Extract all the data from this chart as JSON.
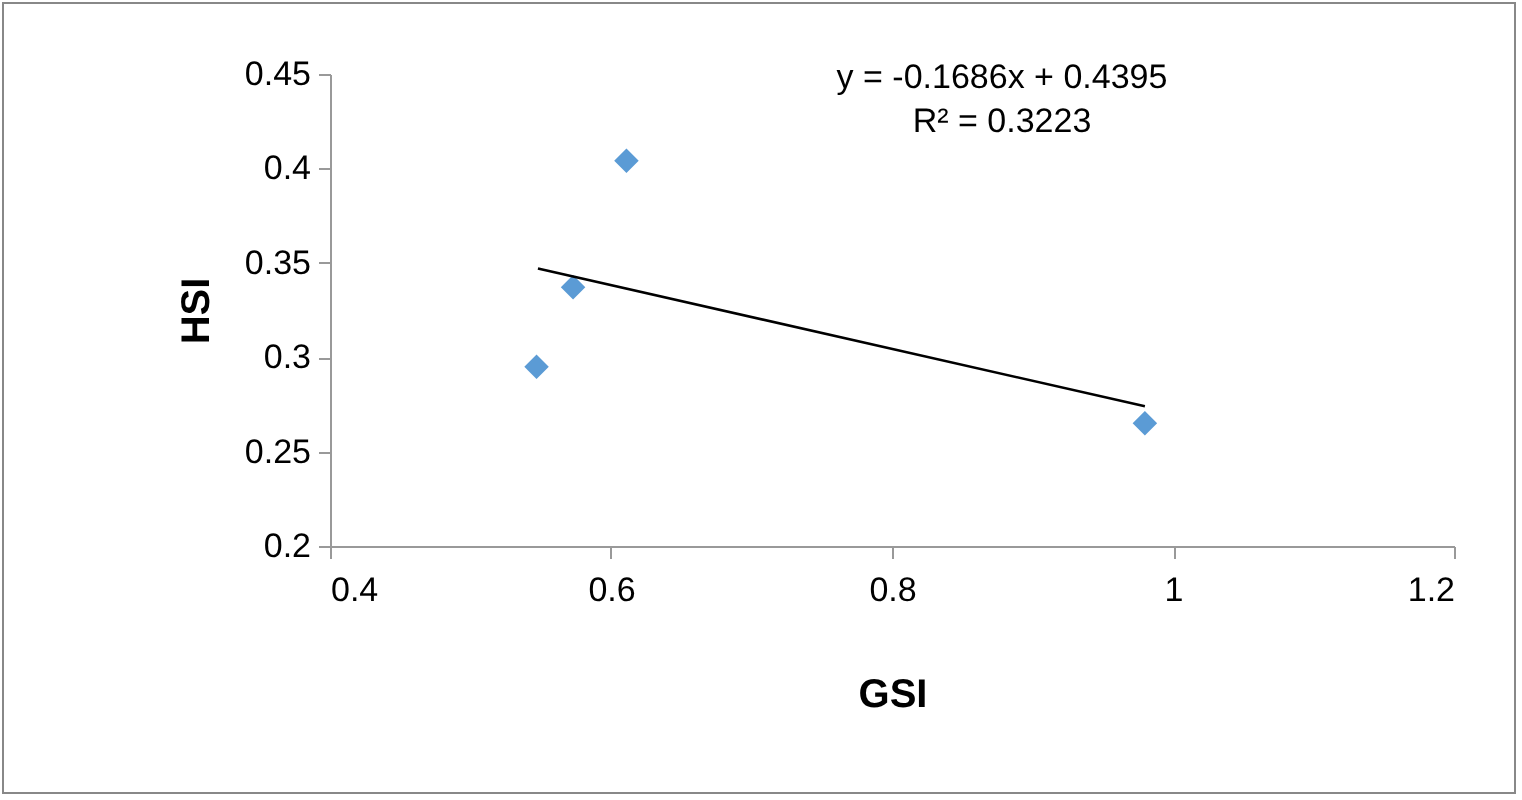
{
  "chart_data": {
    "type": "scatter",
    "xlabel": "GSI",
    "ylabel": "HSI",
    "annotations": [
      "y = -0.1686x + 0.4395",
      "R² = 0.3223"
    ],
    "xlim": [
      0.4,
      1.2
    ],
    "xticks": [
      0.4,
      0.6,
      0.8,
      1,
      1.2
    ],
    "ylim": [
      0.2,
      0.45
    ],
    "yticks": [
      0.2,
      0.25,
      0.3,
      0.35,
      0.4,
      0.45
    ],
    "marker": "diamond",
    "series": [
      {
        "color": "#5b9bd5",
        "x": [
          0.547,
          0.573,
          0.611,
          0.98
        ],
        "values": [
          0.295,
          0.337,
          0.404,
          0.265
        ]
      },
      {
        "type": "line",
        "color": "#000000",
        "x": [
          0.548,
          0.98
        ],
        "values": [
          0.347,
          0.274
        ],
        "marker": "none",
        "line_style": "solid"
      }
    ]
  }
}
